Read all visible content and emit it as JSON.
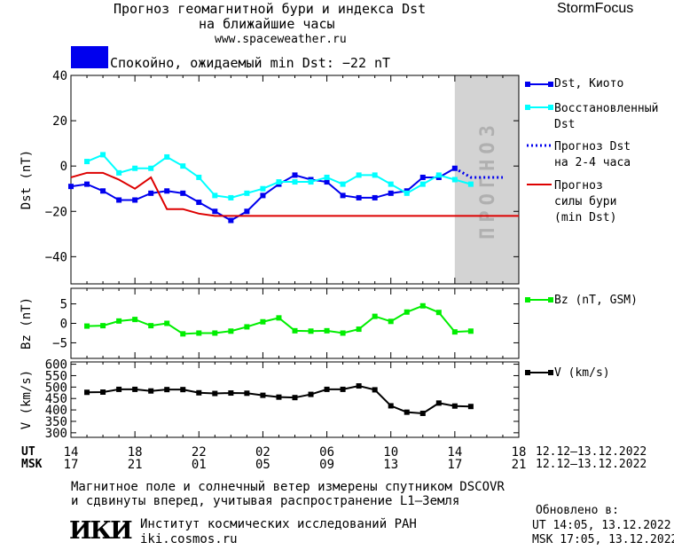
{
  "header": {
    "title_line1": "Прогноз геомагнитной бури и индекса Dst",
    "title_line2": "на ближайшие часы",
    "website": "www.spaceweather.ru",
    "brand": "StormFocus"
  },
  "status": {
    "label": "Спокойно, ожидаемый min Dst: −22 nT",
    "color": "#0000ee"
  },
  "forecast_band_label": "ПРОГНОЗ",
  "time_axis": {
    "ut_label": "UT",
    "msk_label": "MSK",
    "ut_ticks": [
      "14",
      "18",
      "22",
      "02",
      "06",
      "10",
      "14",
      "18"
    ],
    "msk_ticks": [
      "17",
      "21",
      "01",
      "05",
      "09",
      "13",
      "17",
      "21"
    ],
    "date_range_ut": "12.12–13.12.2022",
    "date_range_msk": "12.12–13.12.2022"
  },
  "footer": {
    "note_line1": "Магнитное поле и солнечный ветер измерены спутником DSCOVR",
    "note_line2": "и сдвинуты вперед, учитывая распространение L1–Земля",
    "institute_logo": "ИКИ",
    "institute_name": "Институт космических исследований РАН",
    "institute_site": "iki.cosmos.ru",
    "updated_label": "Обновлено в:",
    "updated_ut": "UT  14:05, 13.12.2022",
    "updated_msk": "MSK 17:05, 13.12.2022"
  },
  "chart_data": [
    {
      "type": "line",
      "ylabel": "Dst (nT)",
      "ylim": [
        -52,
        40
      ],
      "yticks": [
        -40,
        -20,
        0,
        20,
        40
      ],
      "xlim": [
        14,
        42
      ],
      "forecast_region": [
        14,
        18
      ],
      "series": [
        {
          "name": "Dst, Киото",
          "color": "#0000ee",
          "style": "solid-square",
          "x": [
            14,
            15,
            16,
            17,
            18,
            19,
            20,
            21,
            22,
            23,
            24,
            25,
            26,
            27,
            28,
            29,
            30,
            31,
            32,
            33,
            34,
            35,
            36,
            37,
            38
          ],
          "y": [
            -9,
            -8,
            -11,
            -15,
            -15,
            -12,
            -11,
            -12,
            -16,
            -20,
            -24,
            -20,
            -13,
            -8,
            -4,
            -6,
            -7,
            -13,
            -14,
            -14,
            -12,
            -11,
            -5,
            -5,
            -1
          ]
        },
        {
          "name": "Восстановленный Dst",
          "color": "#00ffff",
          "style": "solid-square",
          "x": [
            14,
            15,
            16,
            17,
            18,
            19,
            20,
            21,
            22,
            23,
            24,
            25,
            26,
            27,
            28,
            29,
            30,
            31,
            32,
            33,
            34,
            35,
            36,
            37,
            38,
            39
          ],
          "y": [
            null,
            2,
            5,
            -3,
            -1,
            -1,
            4,
            0,
            -5,
            -13,
            -14,
            -12,
            -10,
            -7,
            -7,
            -7,
            -5,
            -8,
            -4,
            -4,
            -8,
            -12,
            -8,
            -4,
            -6,
            -8
          ]
        },
        {
          "name": "Прогноз Dst на 2-4 часа",
          "color": "#0000ee",
          "style": "dotted",
          "x": [
            38,
            39,
            40,
            41
          ],
          "y": [
            -1,
            -5,
            -5,
            -5
          ]
        },
        {
          "name": "Прогноз силы бури (min Dst)",
          "color": "#dd0000",
          "style": "solid",
          "x": [
            14,
            15,
            16,
            17,
            18,
            19,
            20,
            21,
            22,
            23,
            24,
            25,
            26,
            27,
            28,
            29,
            30,
            31,
            32,
            33,
            34,
            35,
            36,
            37,
            38,
            39,
            40,
            41,
            42
          ],
          "y": [
            -5,
            -3,
            -3,
            -6,
            -10,
            -5,
            -19,
            -19,
            -21,
            -22,
            -22,
            -22,
            -22,
            -22,
            -22,
            -22,
            -22,
            -22,
            -22,
            -22,
            -22,
            -22,
            -22,
            -22,
            -22,
            -22,
            -22,
            -22,
            -22
          ]
        }
      ]
    },
    {
      "type": "line",
      "ylabel": "Bz (nT)",
      "ylim": [
        -9,
        9
      ],
      "yticks": [
        -5,
        0,
        5
      ],
      "xlim": [
        14,
        42
      ],
      "series": [
        {
          "name": "Bz (nT, GSM)",
          "color": "#00ee00",
          "style": "solid-square",
          "x": [
            15,
            16,
            17,
            18,
            19,
            20,
            21,
            22,
            23,
            24,
            25,
            26,
            27,
            28,
            29,
            30,
            31,
            32,
            33,
            34,
            35,
            36,
            37,
            38,
            39
          ],
          "y": [
            -0.7,
            -0.6,
            0.6,
            1.0,
            -0.6,
            0.0,
            -2.7,
            -2.5,
            -2.5,
            -2.0,
            -0.9,
            0.4,
            1.4,
            -1.9,
            -2.0,
            -1.9,
            -2.5,
            -1.5,
            1.8,
            0.5,
            2.9,
            4.5,
            2.8,
            -2.2,
            -2.0
          ]
        }
      ]
    },
    {
      "type": "line",
      "ylabel": "V (km/s)",
      "ylim": [
        280,
        610
      ],
      "yticks": [
        300,
        350,
        400,
        450,
        500,
        550,
        600
      ],
      "xlim": [
        14,
        42
      ],
      "series": [
        {
          "name": "V (km/s)",
          "color": "#000000",
          "style": "solid-square",
          "x": [
            15,
            16,
            17,
            18,
            19,
            20,
            21,
            22,
            23,
            24,
            25,
            26,
            27,
            28,
            29,
            30,
            31,
            32,
            33,
            34,
            35,
            36,
            37,
            38,
            39
          ],
          "y": [
            477,
            478,
            490,
            490,
            483,
            489,
            489,
            475,
            472,
            474,
            473,
            464,
            456,
            454,
            468,
            490,
            490,
            505,
            488,
            418,
            390,
            385,
            430,
            417,
            415
          ]
        }
      ]
    }
  ]
}
